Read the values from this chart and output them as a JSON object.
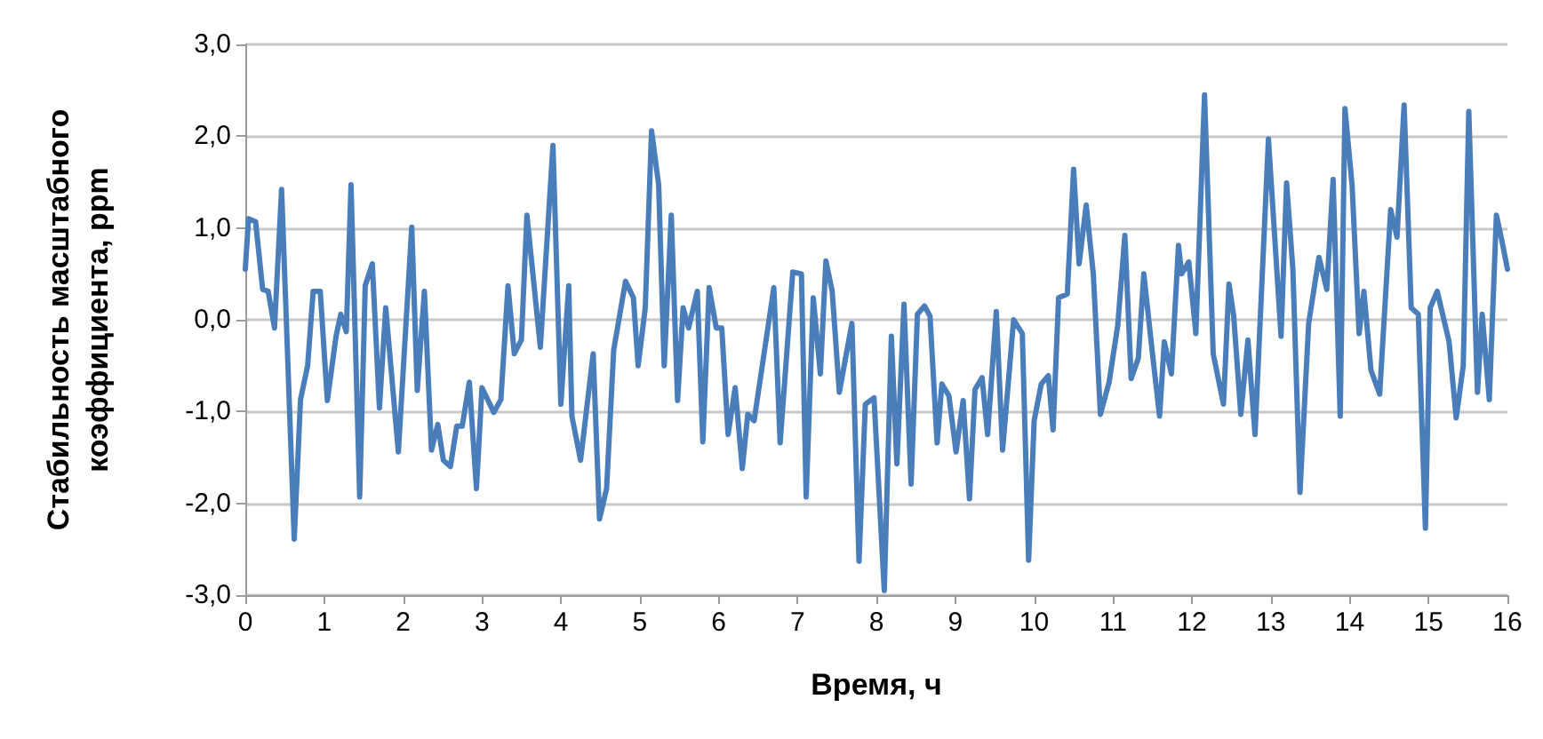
{
  "chart_data": {
    "type": "line",
    "xlabel": "Время, ч",
    "ylabel": "Стабильность масштабного\nкоэффициента, ppm",
    "xlim": [
      0,
      16
    ],
    "xticks": [
      0,
      1,
      2,
      3,
      4,
      5,
      6,
      7,
      8,
      9,
      10,
      11,
      12,
      13,
      14,
      15,
      16
    ],
    "ylim": [
      -3,
      3
    ],
    "yticks": [
      {
        "value": -3,
        "label": "-3,0"
      },
      {
        "value": -2,
        "label": "-2,0"
      },
      {
        "value": -1,
        "label": "-1,0"
      },
      {
        "value": 0,
        "label": "0,0"
      },
      {
        "value": 1,
        "label": "1,0"
      },
      {
        "value": 2,
        "label": "2,0"
      },
      {
        "value": 3,
        "label": "3,0"
      }
    ],
    "grid": "y",
    "marker": "none",
    "line_style": "solid",
    "series": [
      {
        "color": "#4a7ebb",
        "x": [
          0,
          0.04,
          0.13,
          0.22,
          0.29,
          0.37,
          0.46,
          0.62,
          0.7,
          0.79,
          0.86,
          0.95,
          1.04,
          1.15,
          1.21,
          1.28,
          1.34,
          1.45,
          1.52,
          1.61,
          1.7,
          1.78,
          1.94,
          2.11,
          2.18,
          2.27,
          2.36,
          2.44,
          2.51,
          2.6,
          2.68,
          2.75,
          2.84,
          2.93,
          3.0,
          3.15,
          3.24,
          3.33,
          3.41,
          3.5,
          3.57,
          3.74,
          3.9,
          4.0,
          4.1,
          4.14,
          4.25,
          4.41,
          4.49,
          4.58,
          4.67,
          4.82,
          4.92,
          4.98,
          5.07,
          5.15,
          5.24,
          5.31,
          5.4,
          5.48,
          5.55,
          5.62,
          5.66,
          5.73,
          5.8,
          5.88,
          5.97,
          6.04,
          6.12,
          6.21,
          6.3,
          6.37,
          6.45,
          6.7,
          6.78,
          6.94,
          7.05,
          7.11,
          7.2,
          7.29,
          7.36,
          7.44,
          7.53,
          7.69,
          7.78,
          7.86,
          7.97,
          8.1,
          8.19,
          8.26,
          8.35,
          8.44,
          8.52,
          8.61,
          8.68,
          8.77,
          8.83,
          8.92,
          9.01,
          9.1,
          9.18,
          9.25,
          9.34,
          9.41,
          9.52,
          9.6,
          9.74,
          9.85,
          9.93,
          10.0,
          10.09,
          10.18,
          10.24,
          10.31,
          10.42,
          10.5,
          10.57,
          10.66,
          10.75,
          10.84,
          10.95,
          11.06,
          11.15,
          11.23,
          11.32,
          11.39,
          11.5,
          11.59,
          11.65,
          11.74,
          11.83,
          11.87,
          11.96,
          12.05,
          12.16,
          12.27,
          12.4,
          12.47,
          12.53,
          12.62,
          12.71,
          12.8,
          12.97,
          13.13,
          13.2,
          13.28,
          13.37,
          13.48,
          13.61,
          13.71,
          13.79,
          13.88,
          13.94,
          14.03,
          14.12,
          14.18,
          14.27,
          14.38,
          14.52,
          14.6,
          14.69,
          14.78,
          14.87,
          14.96,
          15.02,
          15.11,
          15.26,
          15.35,
          15.44,
          15.51,
          15.62,
          15.68,
          15.77,
          15.86,
          15.93,
          16.0
        ],
        "values": [
          0.55,
          1.1,
          1.07,
          0.33,
          0.31,
          -0.09,
          1.42,
          -2.39,
          -0.87,
          -0.5,
          0.31,
          0.31,
          -0.88,
          -0.18,
          0.06,
          -0.13,
          1.47,
          -1.93,
          0.37,
          0.61,
          -0.96,
          0.13,
          -1.44,
          1.01,
          -0.77,
          0.31,
          -1.42,
          -1.14,
          -1.53,
          -1.6,
          -1.16,
          -1.16,
          -0.68,
          -1.84,
          -0.74,
          -1.01,
          -0.87,
          0.37,
          -0.37,
          -0.22,
          1.14,
          -0.3,
          1.9,
          -0.92,
          0.37,
          -1.05,
          -1.53,
          -0.37,
          -2.17,
          -1.84,
          -0.33,
          0.42,
          0.24,
          -0.5,
          0.13,
          2.06,
          1.47,
          -0.5,
          1.14,
          -0.88,
          0.13,
          -0.09,
          0.06,
          0.31,
          -1.33,
          0.35,
          -0.09,
          -0.09,
          -1.25,
          -0.74,
          -1.62,
          -1.03,
          -1.1,
          0.35,
          -1.34,
          0.52,
          0.5,
          -1.93,
          0.24,
          -0.59,
          0.64,
          0.31,
          -0.79,
          -0.04,
          -2.63,
          -0.92,
          -0.85,
          -2.95,
          -0.18,
          -1.57,
          0.17,
          -1.79,
          0.06,
          0.15,
          0.04,
          -1.34,
          -0.7,
          -0.83,
          -1.44,
          -0.88,
          -1.95,
          -0.76,
          -0.63,
          -1.25,
          0.09,
          -1.42,
          0.0,
          -0.15,
          -2.62,
          -1.1,
          -0.7,
          -0.61,
          -1.2,
          0.24,
          0.28,
          1.64,
          0.61,
          1.25,
          0.5,
          -1.03,
          -0.68,
          -0.06,
          0.92,
          -0.64,
          -0.42,
          0.5,
          -0.37,
          -1.05,
          -0.24,
          -0.59,
          0.81,
          0.5,
          0.63,
          -0.15,
          2.45,
          -0.37,
          -0.92,
          0.39,
          0.04,
          -1.03,
          -0.22,
          -1.25,
          1.97,
          -0.18,
          1.49,
          0.55,
          -1.88,
          -0.04,
          0.68,
          0.33,
          1.53,
          -1.05,
          2.3,
          1.47,
          -0.15,
          0.31,
          -0.55,
          -0.81,
          1.2,
          0.9,
          2.34,
          0.13,
          0.06,
          -2.27,
          0.13,
          0.31,
          -0.24,
          -1.07,
          -0.5,
          2.27,
          -0.79,
          0.06,
          -0.87,
          1.14,
          0.86,
          0.55
        ]
      }
    ]
  }
}
